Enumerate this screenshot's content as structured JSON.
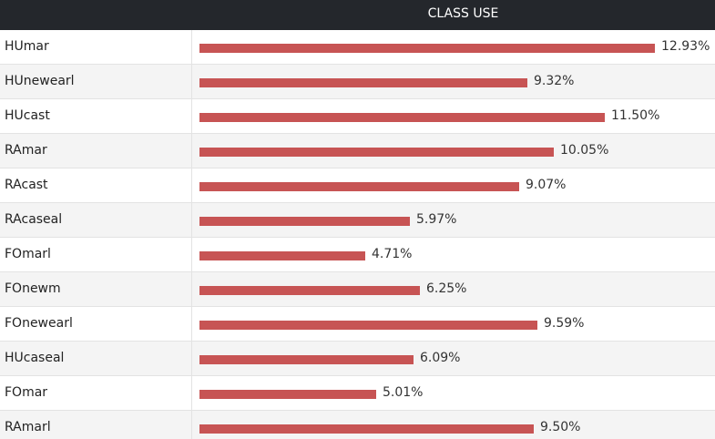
{
  "header": {
    "title": "CLASS USE"
  },
  "colors": {
    "bar": "#c75454",
    "header_bg": "#24272c"
  },
  "chart_data": {
    "type": "bar",
    "orientation": "horizontal",
    "title": "CLASS USE",
    "categories": [
      "HUmar",
      "HUnewearl",
      "HUcast",
      "RAmar",
      "RAcast",
      "RAcaseal",
      "FOmarl",
      "FOnewm",
      "FOnewearl",
      "HUcaseal",
      "FOmar",
      "RAmarl"
    ],
    "values": [
      12.93,
      9.32,
      11.5,
      10.05,
      9.07,
      5.97,
      4.71,
      6.25,
      9.59,
      6.09,
      5.01,
      9.5
    ],
    "value_labels": [
      "12.93%",
      "9.32%",
      "11.50%",
      "10.05%",
      "9.07%",
      "5.97%",
      "4.71%",
      "6.25%",
      "9.59%",
      "6.09%",
      "5.01%",
      "9.50%"
    ],
    "unit": "%",
    "xlim": [
      0,
      12.93
    ],
    "grid": false,
    "legend": "none"
  }
}
